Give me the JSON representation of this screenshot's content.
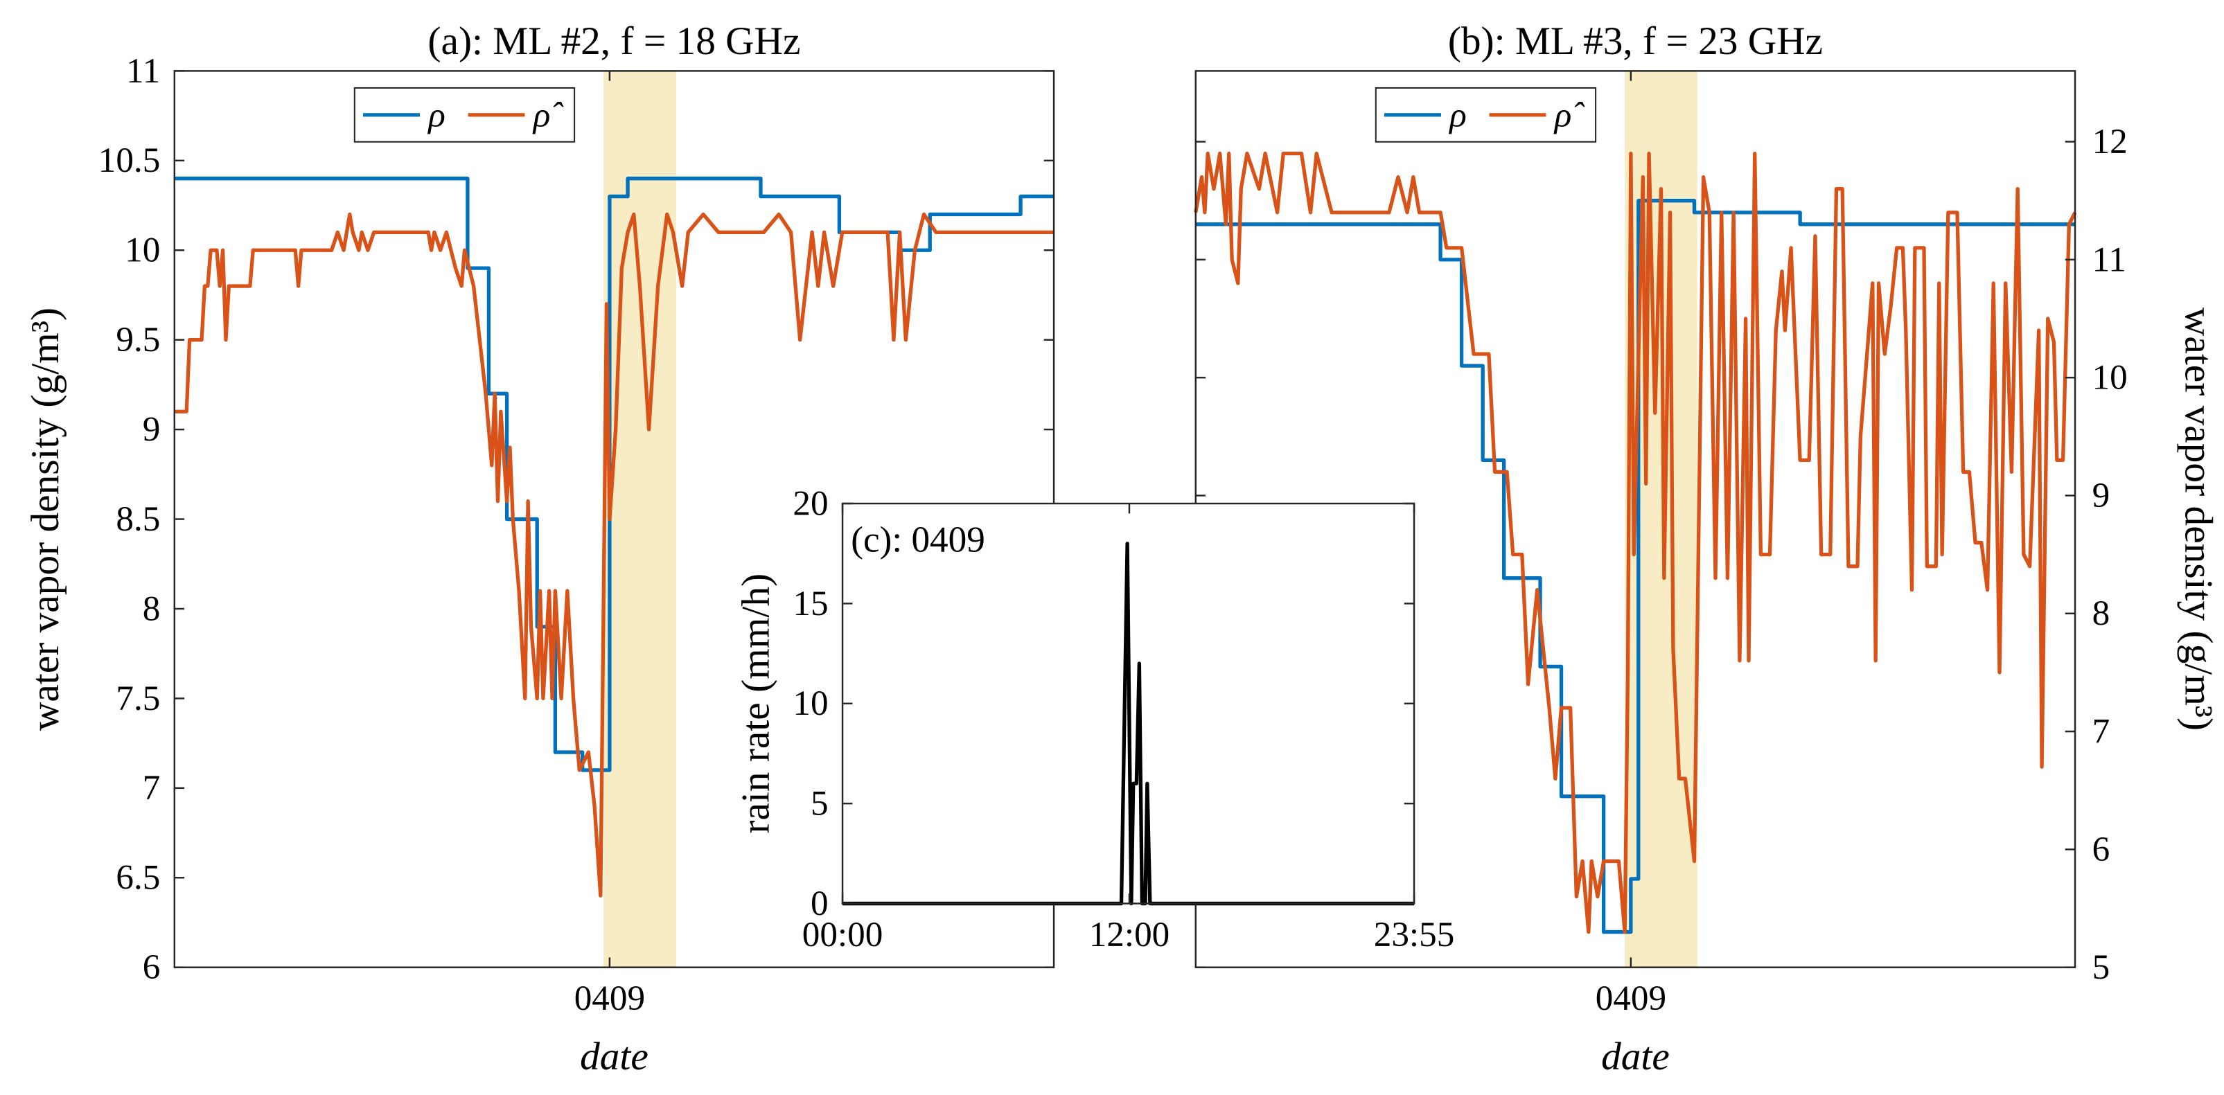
{
  "chart_data": [
    {
      "type": "line",
      "title": "(a): ML #2, f = 18 GHz",
      "xlabel": "date",
      "ylabel": "water vapor density (g/m³)",
      "xlim": [
        0,
        291
      ],
      "xticks": [
        {
          "value": 144,
          "label": "0409"
        }
      ],
      "ylim": [
        6,
        11
      ],
      "yticks": [
        6,
        6.5,
        7,
        7.5,
        8,
        8.5,
        9,
        9.5,
        10,
        10.5,
        11
      ],
      "highlight": [
        142,
        166
      ],
      "highlight_color": "#f7ecc4",
      "legend": "north",
      "series": [
        {
          "name": "ρ",
          "color": "#0072bd",
          "x": [
            0,
            97,
            97,
            104,
            104,
            110,
            110,
            120,
            120,
            126,
            126,
            135,
            135,
            144,
            144,
            150,
            150,
            194,
            194,
            220,
            220,
            240,
            240,
            250,
            250,
            280,
            280,
            291
          ],
          "values": [
            10.4,
            10.4,
            9.9,
            9.9,
            9.2,
            9.2,
            8.5,
            8.5,
            7.9,
            7.9,
            7.2,
            7.2,
            7.1,
            7.1,
            10.3,
            10.3,
            10.4,
            10.4,
            10.3,
            10.3,
            10.1,
            10.1,
            10.0,
            10.0,
            10.2,
            10.2,
            10.3,
            10.3
          ]
        },
        {
          "name": "ρ̂",
          "color": "#d95319",
          "x": [
            0,
            4,
            5,
            9,
            10,
            11,
            12,
            14,
            15,
            16,
            17,
            18,
            25,
            26,
            40,
            41,
            42,
            52,
            54,
            56,
            58,
            59,
            61,
            62,
            64,
            66,
            84,
            85,
            86,
            88,
            90,
            93,
            95,
            96,
            99,
            101,
            103,
            105,
            106,
            107,
            108,
            110,
            111,
            112,
            114,
            116,
            117,
            118,
            120,
            121,
            122,
            124,
            125,
            126,
            128,
            130,
            132,
            134,
            137,
            139,
            141,
            143,
            144,
            146,
            148,
            150,
            152,
            154,
            157,
            160,
            163,
            165,
            168,
            170,
            175,
            180,
            195,
            200,
            204,
            207,
            211,
            213,
            215,
            218,
            221,
            236,
            238,
            240,
            242,
            245,
            248,
            252,
            291
          ],
          "values": [
            9.1,
            9.1,
            9.5,
            9.5,
            9.8,
            9.8,
            10,
            10,
            9.8,
            10,
            9.5,
            9.8,
            9.8,
            10,
            10,
            9.8,
            10,
            10,
            10.1,
            10,
            10.2,
            10.1,
            10,
            10.1,
            10,
            10.1,
            10.1,
            10,
            10.1,
            10,
            10.1,
            9.9,
            9.8,
            10,
            9.8,
            9.5,
            9.2,
            8.8,
            9.2,
            8.6,
            9.1,
            8.6,
            8.9,
            8.5,
            8.1,
            7.5,
            8.6,
            7.9,
            7.5,
            8.1,
            7.5,
            8.1,
            7.5,
            8.1,
            7.5,
            8.1,
            7.5,
            7.1,
            7.2,
            6.9,
            6.4,
            9.7,
            8.5,
            9,
            9.9,
            10.1,
            10.2,
            9.8,
            9.0,
            9.8,
            10.2,
            10.1,
            9.8,
            10.1,
            10.2,
            10.1,
            10.1,
            10.2,
            10.1,
            9.5,
            10.1,
            9.8,
            10.1,
            9.8,
            10.1,
            10.1,
            9.5,
            10.1,
            9.5,
            10,
            10.2,
            10.1,
            10.1
          ]
        }
      ]
    },
    {
      "type": "line",
      "title": "(b): ML #3, f = 23 GHz",
      "xlabel": "date",
      "ylabel": "water vapor density (g/m³)",
      "xlim": [
        0,
        291
      ],
      "xticks": [
        {
          "value": 144,
          "label": "0409"
        }
      ],
      "y2lim": [
        5,
        12.6
      ],
      "y2ticks": [
        5,
        6,
        7,
        8,
        9,
        10,
        11,
        12
      ],
      "highlight": [
        142,
        166
      ],
      "highlight_color": "#f7ecc4",
      "legend": "north",
      "series": [
        {
          "name": "ρ",
          "color": "#0072bd",
          "axis": "y2",
          "x": [
            0,
            81,
            81,
            88,
            88,
            95,
            95,
            102,
            102,
            114,
            114,
            121,
            121,
            135,
            135,
            144,
            144,
            146.5,
            146.5,
            165,
            165,
            200,
            200,
            291
          ],
          "values": [
            11.3,
            11.3,
            11.0,
            11.0,
            10.1,
            10.1,
            9.3,
            9.3,
            8.3,
            8.3,
            7.55,
            7.55,
            6.45,
            6.45,
            5.3,
            5.3,
            5.75,
            5.75,
            11.5,
            11.5,
            11.4,
            11.4,
            11.3,
            11.3
          ]
        },
        {
          "name": "ρ̂",
          "color": "#d95319",
          "axis": "y2",
          "x": [
            0,
            2,
            3,
            4,
            6,
            8,
            10,
            11,
            12,
            14,
            15,
            17,
            21,
            23,
            27,
            29,
            35,
            38,
            40,
            43,
            45,
            64,
            67,
            70,
            72,
            74,
            81,
            83,
            88,
            92,
            97,
            99,
            103,
            105,
            108,
            110,
            113,
            117,
            119,
            121,
            124,
            126,
            128,
            130,
            131,
            133,
            135,
            140,
            142,
            143,
            144,
            145,
            147,
            148,
            149,
            150,
            152,
            154,
            155,
            157,
            158,
            160,
            162,
            165,
            168,
            170,
            172,
            174,
            176,
            178,
            180,
            182,
            183,
            185,
            187,
            190,
            192,
            194,
            195,
            197,
            200,
            203,
            205,
            207,
            210,
            212,
            214,
            216,
            219,
            220,
            224,
            225,
            226,
            228,
            230,
            232,
            234,
            235,
            237,
            238,
            241,
            242,
            245,
            246,
            247,
            249,
            252,
            254,
            256,
            258,
            260,
            262,
            264,
            266,
            268,
            270,
            272,
            274,
            276,
            279,
            280,
            282,
            284,
            285,
            287,
            289,
            291
          ],
          "values": [
            11.4,
            11.7,
            11.4,
            11.9,
            11.6,
            11.9,
            11.3,
            11.9,
            11,
            10.8,
            11.6,
            11.9,
            11.6,
            11.9,
            11.4,
            11.9,
            11.9,
            11.4,
            11.9,
            11.6,
            11.4,
            11.4,
            11.7,
            11.4,
            11.7,
            11.4,
            11.4,
            11.1,
            11.1,
            10.2,
            10.2,
            9.2,
            9.2,
            8.5,
            8.5,
            7.4,
            8.2,
            7.2,
            6.6,
            7.2,
            7.2,
            5.6,
            5.9,
            5.3,
            5.9,
            5.6,
            5.9,
            5.9,
            5.3,
            7.5,
            11.9,
            8.5,
            10.7,
            11.7,
            9.1,
            11.9,
            9.7,
            11.6,
            8.3,
            11.4,
            7.7,
            6.6,
            6.6,
            5.9,
            11.7,
            11.4,
            8.3,
            11.4,
            8.3,
            11.4,
            7.6,
            10.5,
            7.6,
            11.9,
            8.5,
            8.5,
            10.4,
            10.9,
            10.4,
            11.1,
            9.3,
            9.3,
            11.2,
            8.5,
            8.5,
            11.6,
            11.6,
            8.4,
            8.4,
            9.5,
            10.8,
            7.6,
            10.8,
            10.2,
            10.6,
            11.1,
            11.1,
            10.4,
            8.2,
            11.1,
            11.1,
            8.4,
            8.4,
            10.8,
            8.5,
            11.4,
            11.4,
            9.2,
            9.2,
            8.6,
            8.6,
            8.2,
            10.8,
            7.5,
            10.8,
            9.2,
            11.6,
            8.5,
            8.4,
            10.4,
            6.7,
            10.5,
            10.3,
            9.3,
            9.3,
            11.3,
            11.4
          ]
        }
      ]
    },
    {
      "type": "line",
      "annotation": "(c): 0409",
      "ylabel": "rain rate (mm/h)",
      "xlim": [
        0,
        1435
      ],
      "xticks": [
        {
          "value": 0,
          "label": "00:00"
        },
        {
          "value": 720,
          "label": "12:00"
        },
        {
          "value": 1435,
          "label": "23:55"
        }
      ],
      "ylim": [
        0,
        20
      ],
      "yticks": [
        0,
        5,
        10,
        15,
        20
      ],
      "series": [
        {
          "color": "#000000",
          "x": [
            0,
            700,
            715,
            725,
            730,
            738,
            745,
            752,
            760,
            765,
            772,
            1435
          ],
          "values": [
            0,
            0,
            18,
            0,
            6,
            6,
            12,
            0,
            0,
            6,
            0,
            0
          ]
        }
      ]
    }
  ]
}
